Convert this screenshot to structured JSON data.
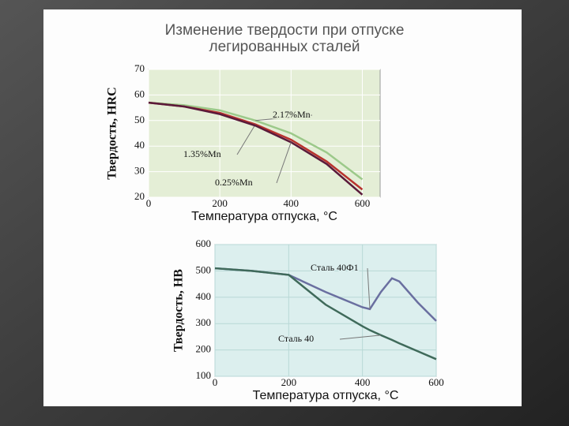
{
  "slide": {
    "title": [
      "Изменение твердости при отпуске",
      "легированных сталей"
    ]
  },
  "chart_data": [
    {
      "type": "line",
      "x": [
        0,
        100,
        200,
        300,
        400,
        500,
        600
      ],
      "xlim": [
        0,
        650
      ],
      "xticks": [
        0,
        200,
        400,
        600
      ],
      "ylim": [
        20,
        70
      ],
      "yticks": [
        20,
        30,
        40,
        50,
        60,
        70
      ],
      "grid": true,
      "xlabel": "Температура отпуска, °C",
      "ylabel": "Твердость, HRC",
      "series": [
        {
          "name": "2.17%Mn",
          "color": "#9cc98a",
          "values": [
            57,
            56,
            54,
            50,
            45,
            37.5,
            27
          ]
        },
        {
          "name": "1.35%Mn",
          "color": "#b8322e",
          "values": [
            57,
            55.5,
            53,
            48.5,
            42.5,
            34,
            23
          ]
        },
        {
          "name": "0.25%Mn",
          "color": "#5a1a3a",
          "values": [
            57,
            55.5,
            52.5,
            48,
            41.5,
            33,
            21
          ]
        }
      ]
    },
    {
      "type": "line",
      "x": [
        0,
        100,
        200,
        300,
        400,
        420,
        450,
        480,
        500,
        550,
        600
      ],
      "xlim": [
        0,
        600
      ],
      "xticks": [
        0,
        200,
        400,
        600
      ],
      "ylim": [
        100,
        600
      ],
      "yticks": [
        100,
        200,
        300,
        400,
        500,
        600
      ],
      "grid": true,
      "xlabel": "Температура отпуска, °C",
      "ylabel": "Твердость, НВ",
      "series": [
        {
          "name": "Сталь 40Ф1",
          "color": "#6a6fa0",
          "values": [
            510,
            500,
            485,
            420,
            362,
            355,
            420,
            472,
            460,
            380,
            310
          ]
        },
        {
          "name": "Сталь 40",
          "color": "#3f6a5a",
          "values": [
            510,
            500,
            485,
            372,
            290,
            275,
            256,
            238,
            225,
            195,
            165
          ]
        }
      ]
    }
  ]
}
